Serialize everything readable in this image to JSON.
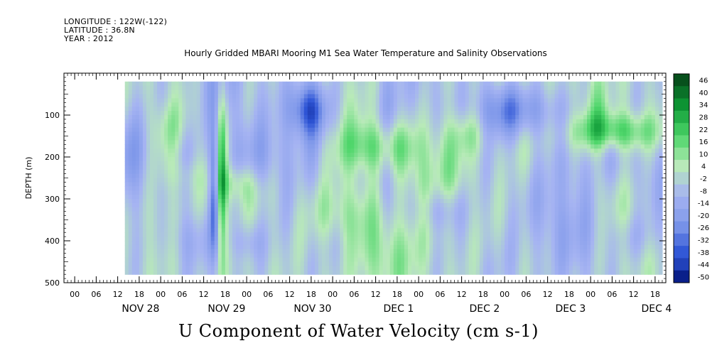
{
  "header": {
    "longitude": "LONGITUDE : 122W(-122)",
    "latitude": "LATITUDE : 36.8N",
    "year": "YEAR : 2012"
  },
  "title": "Hourly Gridded MBARI Mooring M1 Sea Water Temperature and Salinity Observations",
  "bottom_title": "U Component of Water Velocity (cm s-1)",
  "chart_data": {
    "type": "heatmap",
    "title": "Hourly Gridded MBARI Mooring M1 Sea Water Temperature and Salinity Observations",
    "xlabel": "",
    "ylabel": "DEPTH (m)",
    "ylim": [
      500,
      0
    ],
    "yticks": [
      100,
      200,
      300,
      400,
      500
    ],
    "x_hour_ticks": [
      "00",
      "06",
      "12",
      "18",
      "00",
      "06",
      "12",
      "18",
      "00",
      "06",
      "12",
      "18",
      "00",
      "06",
      "12",
      "18",
      "00",
      "06",
      "12",
      "18",
      "00",
      "06",
      "12",
      "18",
      "00",
      "06",
      "12",
      "18"
    ],
    "x_day_labels": [
      "NOV 28",
      "NOV 29",
      "NOV 30",
      "DEC  1",
      "DEC  2",
      "DEC  3",
      "DEC  4"
    ],
    "colorbar_labels": [
      "46",
      "40",
      "34",
      "28",
      "22",
      "16",
      "10",
      "4",
      "-2",
      "-8",
      "-14",
      "-20",
      "-26",
      "-32",
      "-38",
      "-44",
      "-50"
    ],
    "colorbar_range": [
      -50,
      50
    ],
    "colormap": [
      "#0a1f8a",
      "#2e55d6",
      "#7f98ea",
      "#a6b4f2",
      "#b8eab8",
      "#4ed66a",
      "#0e9a36",
      "#064a1a"
    ],
    "time_range_hours": [
      -15,
      153
    ],
    "data_coverage_hours": [
      2,
      152
    ],
    "depth_coverage_m": [
      20,
      480
    ],
    "features": [
      {
        "desc": "shallow blue (westward) band",
        "hours": [
          100,
          122
        ],
        "depth": [
          20,
          160
        ],
        "value": -30
      },
      {
        "desc": "shallow blue core",
        "hours": [
          48,
          58
        ],
        "depth": [
          20,
          150
        ],
        "value": -28
      },
      {
        "desc": "strong eastward layer",
        "hours": [
          126,
          152
        ],
        "depth": [
          90,
          190
        ],
        "value": 26
      },
      {
        "desc": "strong eastward layer",
        "hours": [
          60,
          84
        ],
        "depth": [
          110,
          240
        ],
        "value": 20
      },
      {
        "desc": "narrow eastward column",
        "hours": [
          28,
          30
        ],
        "depth": [
          20,
          450
        ],
        "value": 30
      },
      {
        "desc": "narrow westward column",
        "hours": [
          26,
          28
        ],
        "depth": [
          130,
          450
        ],
        "value": -30
      }
    ]
  }
}
